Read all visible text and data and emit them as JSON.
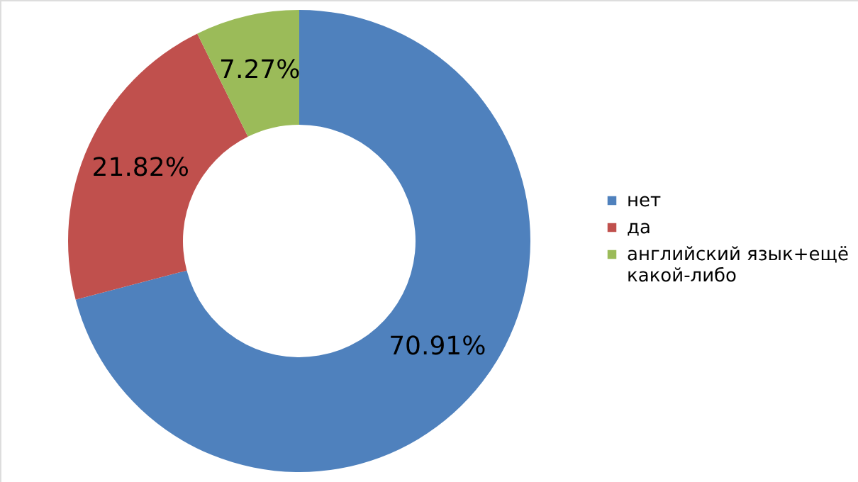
{
  "chart_data": {
    "type": "donut",
    "categories": [
      "нет",
      "да",
      "английский язык+ещё какой-либо"
    ],
    "values": [
      70.91,
      21.82,
      7.27
    ],
    "colors": [
      "#4f81bd",
      "#c0504d",
      "#9bbb59"
    ],
    "value_labels": [
      "70.91%",
      "21.82%",
      "7.27%"
    ],
    "legend": "right"
  }
}
